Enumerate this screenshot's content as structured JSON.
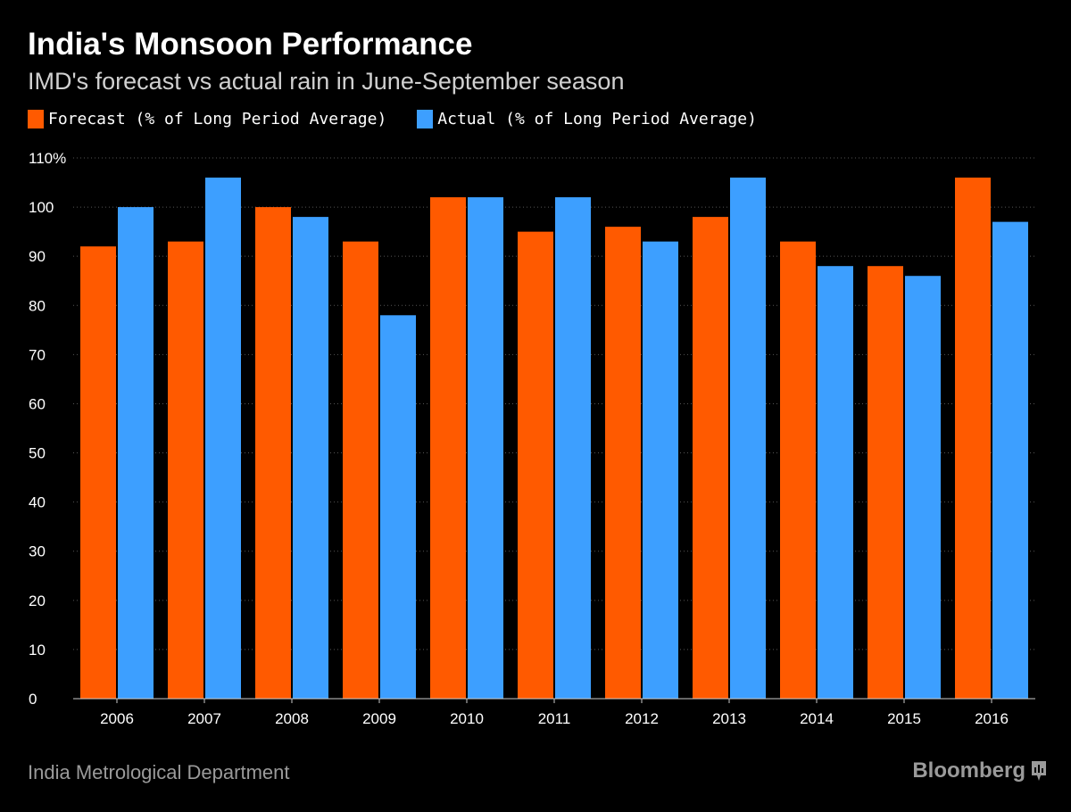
{
  "colors": {
    "forecast": "#ff5a00",
    "actual": "#3d9fff",
    "grid": "#555555",
    "axis": "#cccccc",
    "background": "#000000"
  },
  "chart_data": {
    "type": "bar",
    "title": "India's Monsoon Performance",
    "subtitle": "IMD's forecast vs actual rain in June-September season",
    "categories": [
      "2006",
      "2007",
      "2008",
      "2009",
      "2010",
      "2011",
      "2012",
      "2013",
      "2014",
      "2015",
      "2016"
    ],
    "series": [
      {
        "name": "Forecast (% of Long Period Average)",
        "color": "#ff5a00",
        "values": [
          92,
          93,
          100,
          93,
          102,
          95,
          96,
          98,
          93,
          88,
          106
        ]
      },
      {
        "name": "Actual (% of Long Period Average)",
        "color": "#3d9fff",
        "values": [
          100,
          106,
          98,
          78,
          102,
          102,
          93,
          106,
          88,
          86,
          97
        ]
      }
    ],
    "ylim": [
      0,
      110
    ],
    "yticks": [
      0,
      10,
      20,
      30,
      40,
      50,
      60,
      70,
      80,
      90,
      100,
      110
    ],
    "ytick_labels": [
      "0",
      "10",
      "20",
      "30",
      "40",
      "50",
      "60",
      "70",
      "80",
      "90",
      "100",
      "110%"
    ],
    "xlabel": "",
    "ylabel": "",
    "grid": true,
    "legend_position": "top-left"
  },
  "footer": {
    "source": "India Metrological Department",
    "brand": "Bloomberg"
  }
}
